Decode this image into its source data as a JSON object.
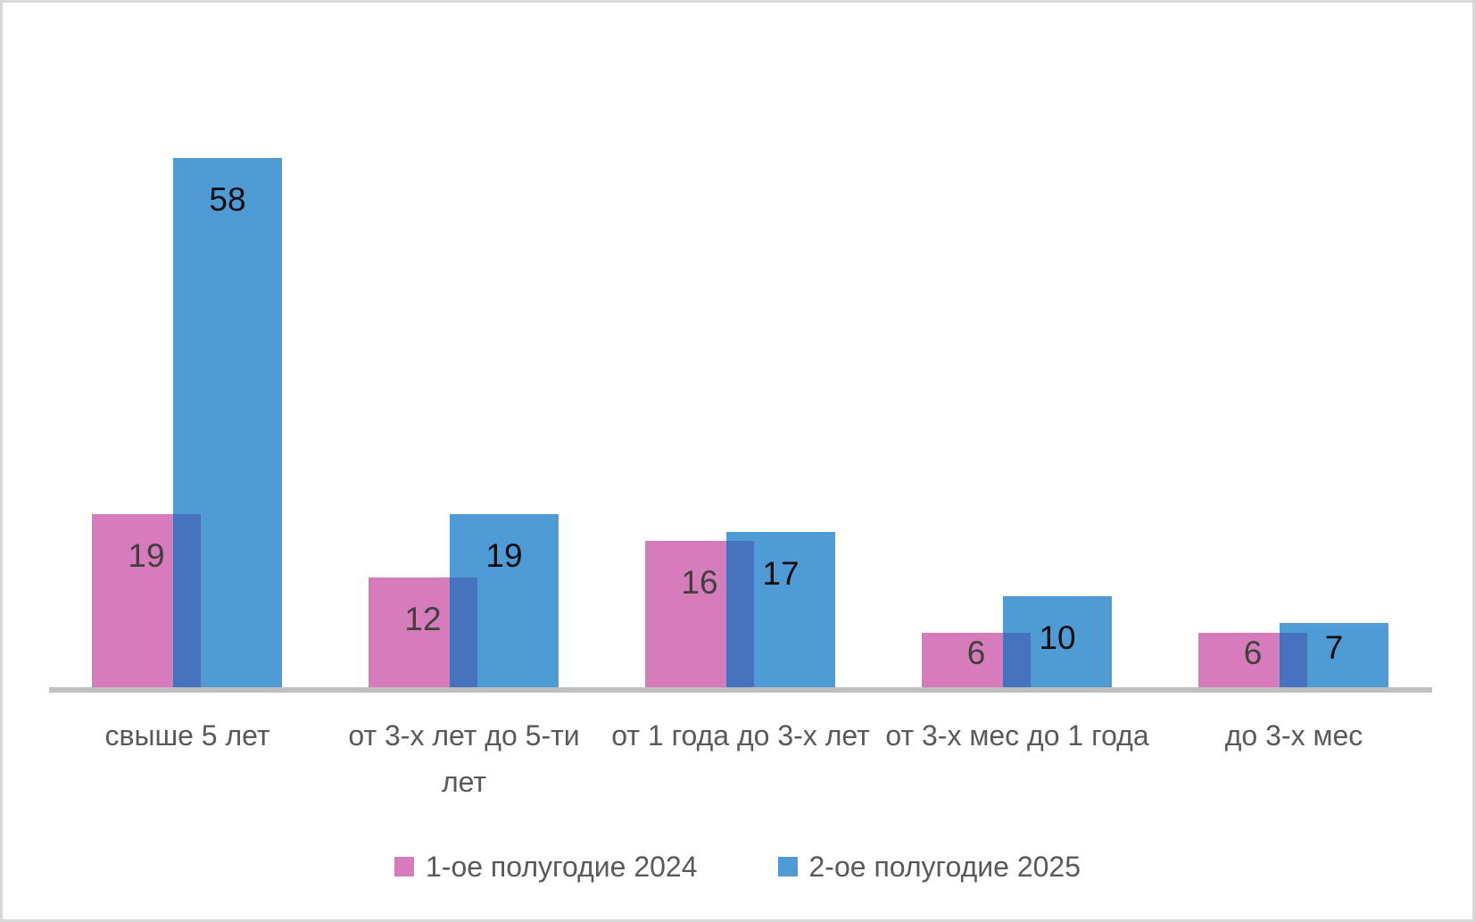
{
  "chart_data": {
    "type": "bar",
    "categories": [
      "свыше 5 лет",
      "от 3-х лет до 5-ти лет",
      "от 1 года до 3-х лет",
      "от 3-х мес до 1 года",
      "до 3-х мес"
    ],
    "series": [
      {
        "name": "1-ое полугодие 2024",
        "values": [
          19,
          12,
          16,
          6,
          6
        ],
        "color": "#d67cbb",
        "label_color": "#404040"
      },
      {
        "name": "2-ое полугодие 2025",
        "values": [
          58,
          19,
          17,
          10,
          7
        ],
        "color": "#4f9bd5",
        "label_color": "#0d0d0d"
      }
    ],
    "overlap_color": "#4573bd",
    "data_labels": "inside-end",
    "legend_position": "bottom",
    "grid": false,
    "axis": {
      "x_line_color": "#bfbfbf",
      "y_axis_visible": false
    },
    "text_color": "#595959",
    "background": "#ffffff",
    "border_color": "#d9d9d9"
  }
}
